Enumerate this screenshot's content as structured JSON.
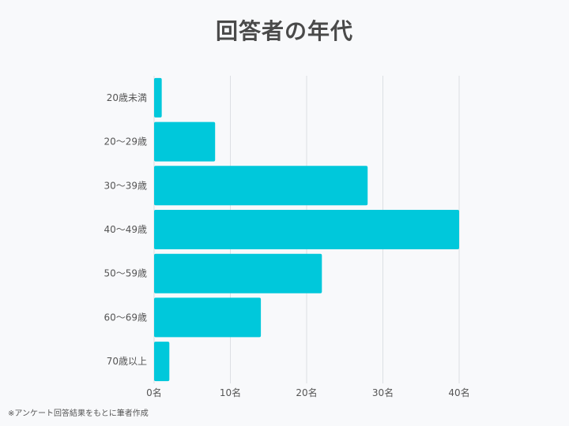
{
  "chart_data": {
    "type": "bar",
    "orientation": "horizontal",
    "title": "回答者の年代",
    "categories": [
      "20歳未満",
      "20～29歳",
      "30～39歳",
      "40～49歳",
      "50～59歳",
      "60～69歳",
      "70歳以上"
    ],
    "values": [
      1,
      8,
      28,
      40,
      22,
      14,
      2
    ],
    "x_ticks": [
      "0名",
      "10名",
      "20名",
      "30名",
      "40名"
    ],
    "xlim": [
      0,
      40
    ],
    "grid": "vertical",
    "legend": "none",
    "bar_color": "#00c8db",
    "grid_color": "#dcdfe3"
  },
  "footnote": "※アンケート回答結果をもとに筆者作成"
}
